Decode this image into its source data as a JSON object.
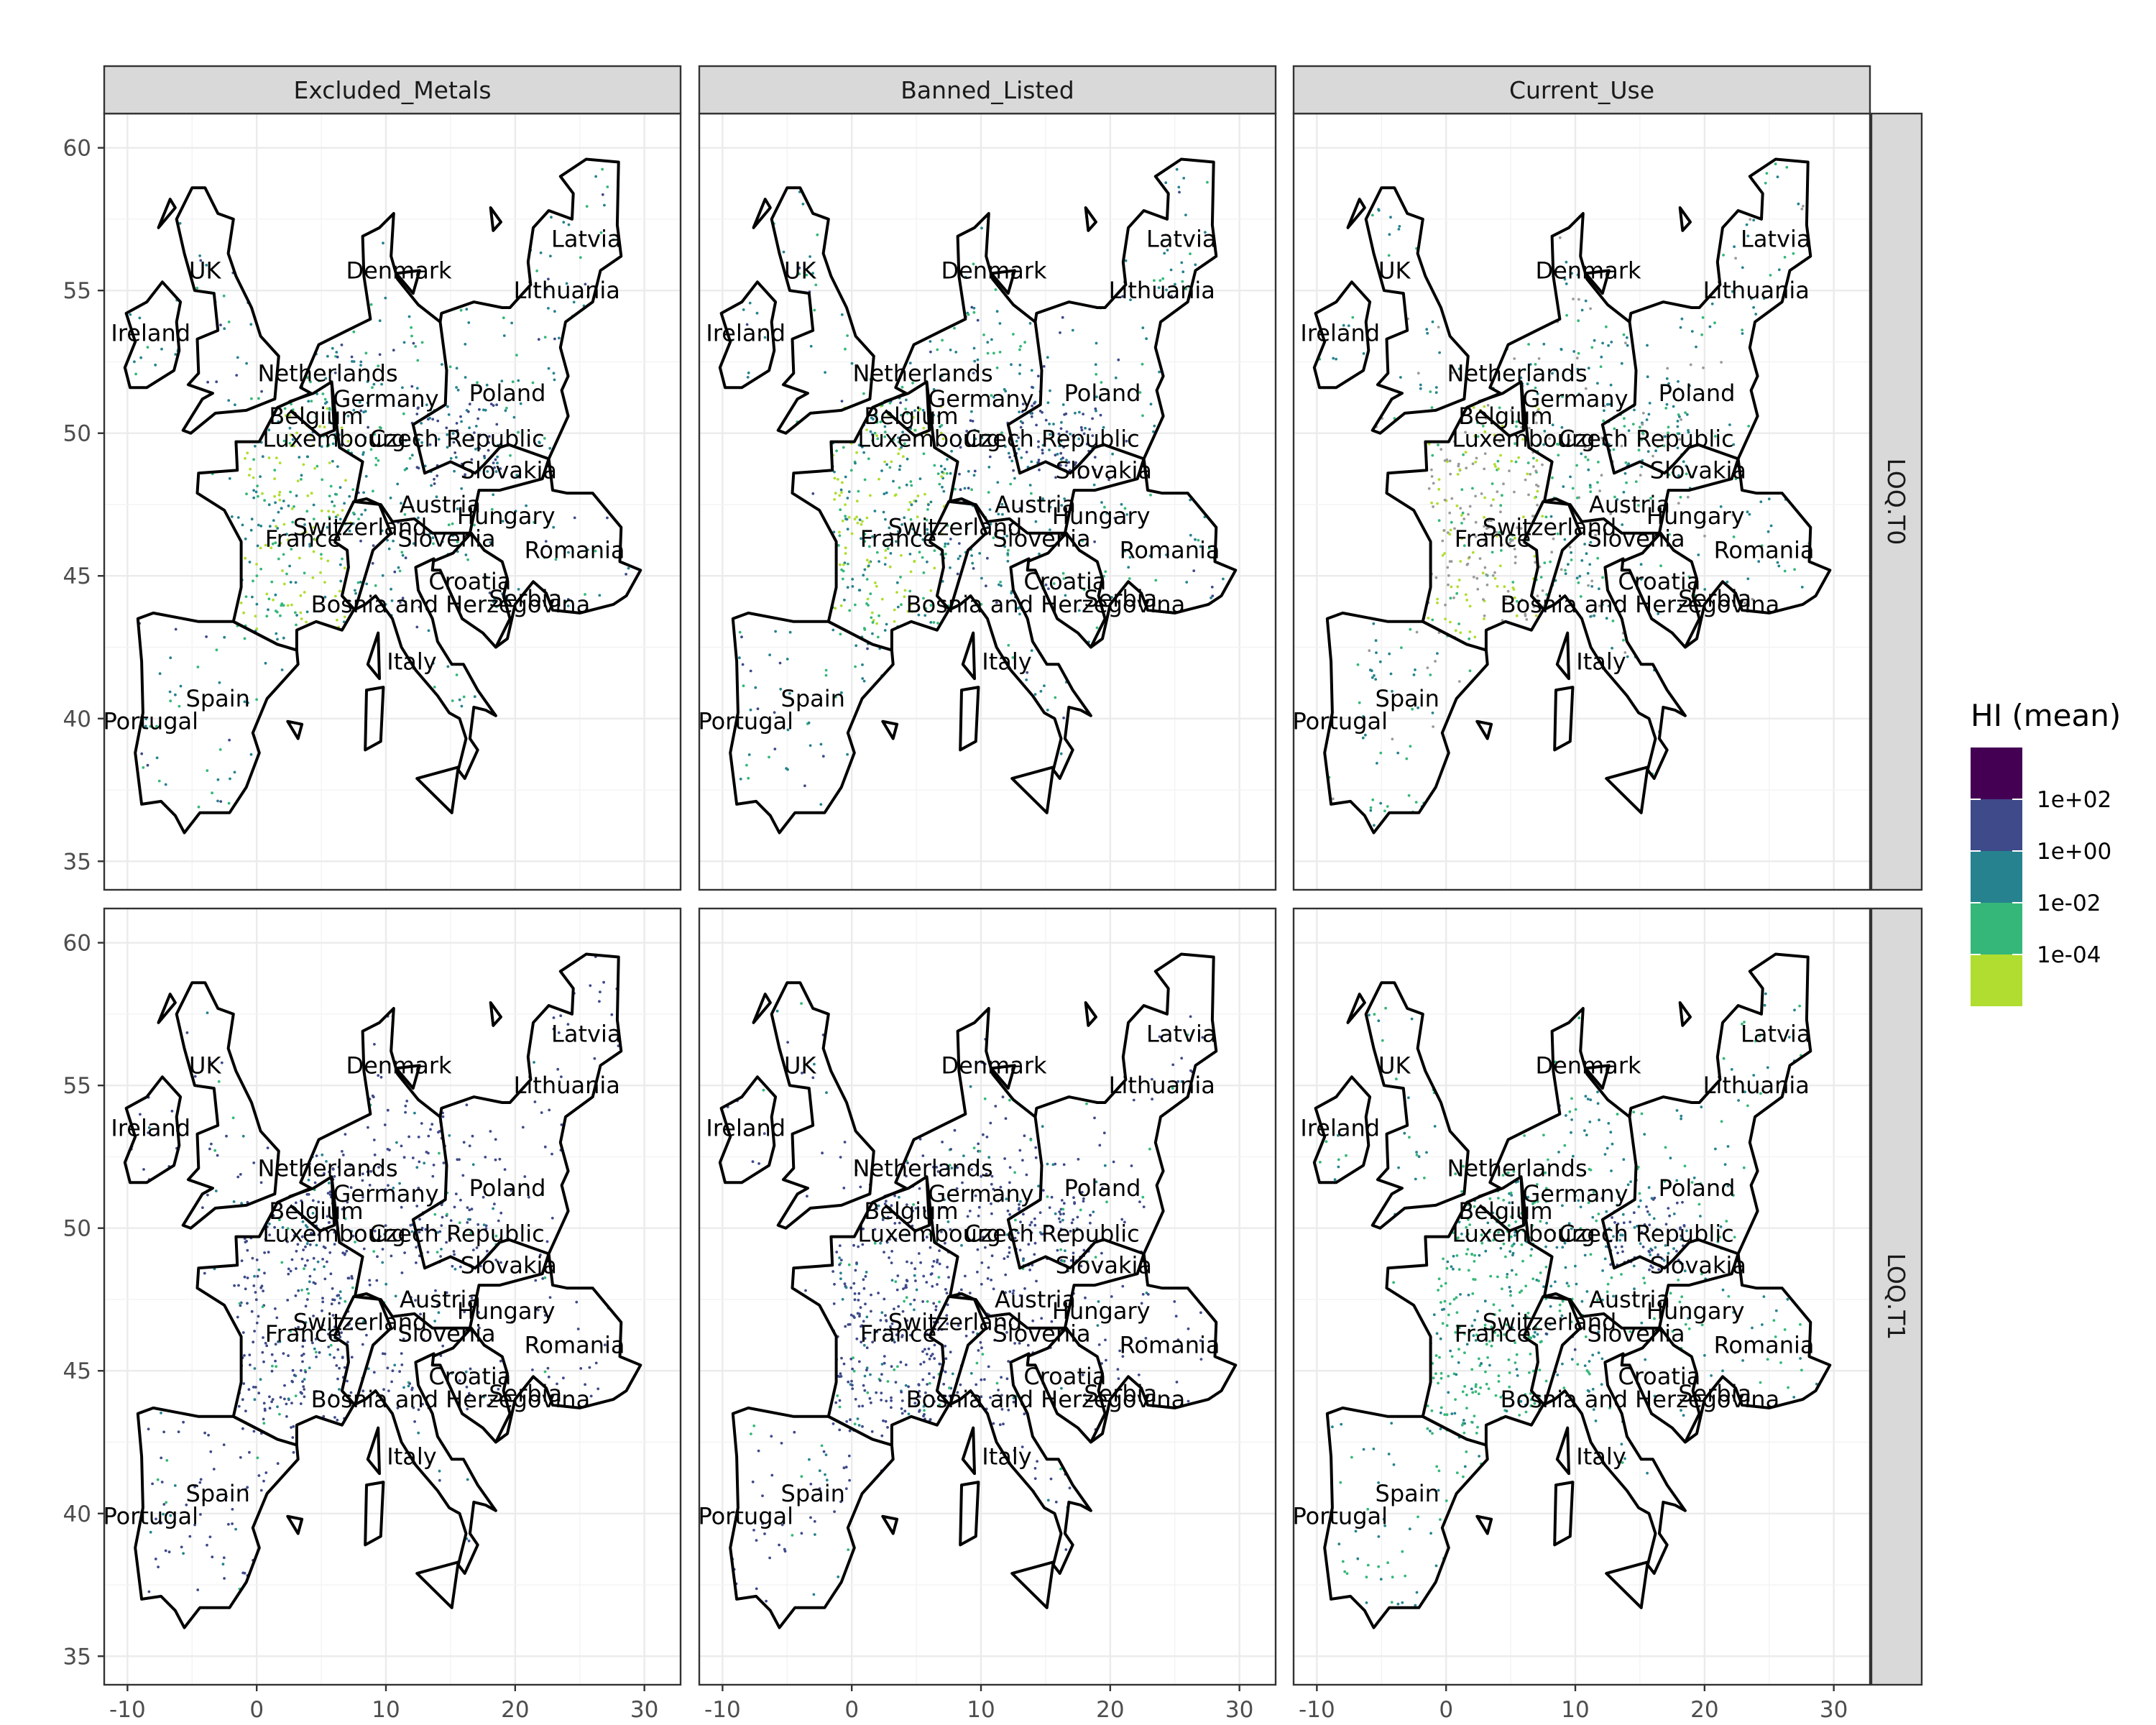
{
  "chart_data": {
    "type": "map",
    "facet_columns": [
      "Excluded_Metals",
      "Banned_Listed",
      "Current_Use"
    ],
    "facet_rows": [
      "LOQ.T0",
      "LOQ.T1"
    ],
    "x_ticks": [
      -10,
      0,
      10,
      20,
      30
    ],
    "y_ticks": [
      35,
      40,
      45,
      50,
      55,
      60
    ],
    "xlim": [
      -11.8,
      32.8
    ],
    "ylim": [
      34.0,
      61.2
    ],
    "grid": true,
    "legend": {
      "title": "HI (mean)",
      "position": "right",
      "colors": [
        "#fde725",
        "#b0dd2f",
        "#35b779",
        "#26828e",
        "#3e4a89",
        "#440154"
      ],
      "labels": [
        "1e+02",
        "1e+00",
        "1e-02",
        "1e-04"
      ]
    },
    "countries": [
      {
        "name": "Latvia",
        "lon": 25.5,
        "lat": 56.8
      },
      {
        "name": "UK",
        "lon": -4.0,
        "lat": 55.7
      },
      {
        "name": "Denmark",
        "lon": 11.0,
        "lat": 55.7
      },
      {
        "name": "Lithuania",
        "lon": 24.0,
        "lat": 55.0
      },
      {
        "name": "Ireland",
        "lon": -8.2,
        "lat": 53.5
      },
      {
        "name": "Netherlands",
        "lon": 5.5,
        "lat": 52.1
      },
      {
        "name": "Poland",
        "lon": 19.4,
        "lat": 51.4
      },
      {
        "name": "Germany",
        "lon": 10.0,
        "lat": 51.2
      },
      {
        "name": "Belgium",
        "lon": 4.6,
        "lat": 50.6
      },
      {
        "name": "Czech Republic",
        "lon": 15.5,
        "lat": 49.8
      },
      {
        "name": "Luxembourg",
        "lon": 6.0,
        "lat": 49.8
      },
      {
        "name": "Slovakia",
        "lon": 19.5,
        "lat": 48.7
      },
      {
        "name": "Austria",
        "lon": 14.2,
        "lat": 47.5
      },
      {
        "name": "Hungary",
        "lon": 19.3,
        "lat": 47.1
      },
      {
        "name": "Switzerland",
        "lon": 8.0,
        "lat": 46.7
      },
      {
        "name": "France",
        "lon": 3.6,
        "lat": 46.3
      },
      {
        "name": "Slovenia",
        "lon": 14.7,
        "lat": 46.3
      },
      {
        "name": "Romania",
        "lon": 24.6,
        "lat": 45.9
      },
      {
        "name": "Croatia",
        "lon": 16.5,
        "lat": 44.8
      },
      {
        "name": "Serbia",
        "lon": 20.8,
        "lat": 44.2
      },
      {
        "name": "Bosnia and Herzegovina",
        "lon": 15.0,
        "lat": 44.0
      },
      {
        "name": "Italy",
        "lon": 12.0,
        "lat": 42.0
      },
      {
        "name": "Spain",
        "lon": -3.0,
        "lat": 40.7
      },
      {
        "name": "Portugal",
        "lon": -8.2,
        "lat": 39.9
      }
    ]
  }
}
